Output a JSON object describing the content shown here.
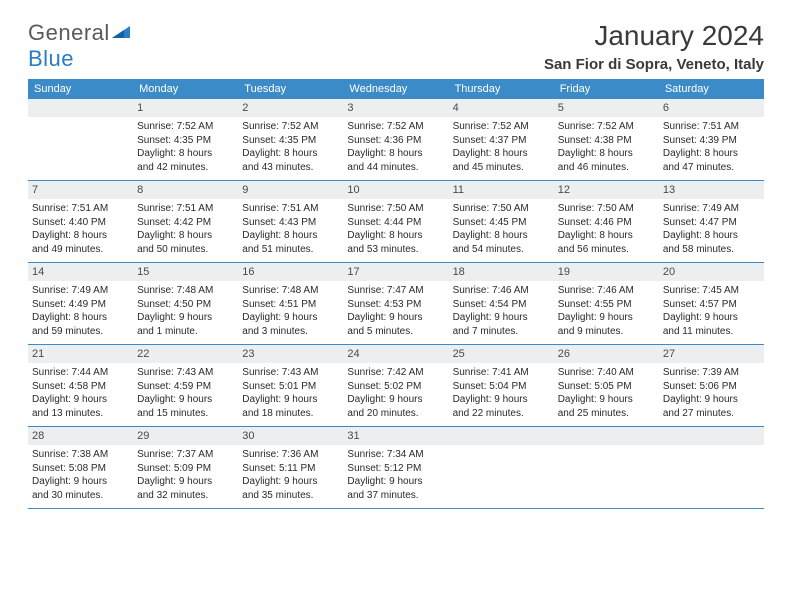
{
  "logo": {
    "text1": "General",
    "text2": "Blue"
  },
  "title": "January 2024",
  "location": "San Fior di Sopra, Veneto, Italy",
  "colors": {
    "header_bar": "#3b8bc9",
    "daynum_bg": "#eceef0",
    "text_dark": "#3a3a3a",
    "logo_gray": "#5a5a5a",
    "logo_blue": "#2b7cc4"
  },
  "weekdays": [
    "Sunday",
    "Monday",
    "Tuesday",
    "Wednesday",
    "Thursday",
    "Friday",
    "Saturday"
  ],
  "weeks": [
    [
      {
        "n": "",
        "sunrise": "",
        "sunset": "",
        "d1": "",
        "d2": ""
      },
      {
        "n": "1",
        "sunrise": "Sunrise: 7:52 AM",
        "sunset": "Sunset: 4:35 PM",
        "d1": "Daylight: 8 hours",
        "d2": "and 42 minutes."
      },
      {
        "n": "2",
        "sunrise": "Sunrise: 7:52 AM",
        "sunset": "Sunset: 4:35 PM",
        "d1": "Daylight: 8 hours",
        "d2": "and 43 minutes."
      },
      {
        "n": "3",
        "sunrise": "Sunrise: 7:52 AM",
        "sunset": "Sunset: 4:36 PM",
        "d1": "Daylight: 8 hours",
        "d2": "and 44 minutes."
      },
      {
        "n": "4",
        "sunrise": "Sunrise: 7:52 AM",
        "sunset": "Sunset: 4:37 PM",
        "d1": "Daylight: 8 hours",
        "d2": "and 45 minutes."
      },
      {
        "n": "5",
        "sunrise": "Sunrise: 7:52 AM",
        "sunset": "Sunset: 4:38 PM",
        "d1": "Daylight: 8 hours",
        "d2": "and 46 minutes."
      },
      {
        "n": "6",
        "sunrise": "Sunrise: 7:51 AM",
        "sunset": "Sunset: 4:39 PM",
        "d1": "Daylight: 8 hours",
        "d2": "and 47 minutes."
      }
    ],
    [
      {
        "n": "7",
        "sunrise": "Sunrise: 7:51 AM",
        "sunset": "Sunset: 4:40 PM",
        "d1": "Daylight: 8 hours",
        "d2": "and 49 minutes."
      },
      {
        "n": "8",
        "sunrise": "Sunrise: 7:51 AM",
        "sunset": "Sunset: 4:42 PM",
        "d1": "Daylight: 8 hours",
        "d2": "and 50 minutes."
      },
      {
        "n": "9",
        "sunrise": "Sunrise: 7:51 AM",
        "sunset": "Sunset: 4:43 PM",
        "d1": "Daylight: 8 hours",
        "d2": "and 51 minutes."
      },
      {
        "n": "10",
        "sunrise": "Sunrise: 7:50 AM",
        "sunset": "Sunset: 4:44 PM",
        "d1": "Daylight: 8 hours",
        "d2": "and 53 minutes."
      },
      {
        "n": "11",
        "sunrise": "Sunrise: 7:50 AM",
        "sunset": "Sunset: 4:45 PM",
        "d1": "Daylight: 8 hours",
        "d2": "and 54 minutes."
      },
      {
        "n": "12",
        "sunrise": "Sunrise: 7:50 AM",
        "sunset": "Sunset: 4:46 PM",
        "d1": "Daylight: 8 hours",
        "d2": "and 56 minutes."
      },
      {
        "n": "13",
        "sunrise": "Sunrise: 7:49 AM",
        "sunset": "Sunset: 4:47 PM",
        "d1": "Daylight: 8 hours",
        "d2": "and 58 minutes."
      }
    ],
    [
      {
        "n": "14",
        "sunrise": "Sunrise: 7:49 AM",
        "sunset": "Sunset: 4:49 PM",
        "d1": "Daylight: 8 hours",
        "d2": "and 59 minutes."
      },
      {
        "n": "15",
        "sunrise": "Sunrise: 7:48 AM",
        "sunset": "Sunset: 4:50 PM",
        "d1": "Daylight: 9 hours",
        "d2": "and 1 minute."
      },
      {
        "n": "16",
        "sunrise": "Sunrise: 7:48 AM",
        "sunset": "Sunset: 4:51 PM",
        "d1": "Daylight: 9 hours",
        "d2": "and 3 minutes."
      },
      {
        "n": "17",
        "sunrise": "Sunrise: 7:47 AM",
        "sunset": "Sunset: 4:53 PM",
        "d1": "Daylight: 9 hours",
        "d2": "and 5 minutes."
      },
      {
        "n": "18",
        "sunrise": "Sunrise: 7:46 AM",
        "sunset": "Sunset: 4:54 PM",
        "d1": "Daylight: 9 hours",
        "d2": "and 7 minutes."
      },
      {
        "n": "19",
        "sunrise": "Sunrise: 7:46 AM",
        "sunset": "Sunset: 4:55 PM",
        "d1": "Daylight: 9 hours",
        "d2": "and 9 minutes."
      },
      {
        "n": "20",
        "sunrise": "Sunrise: 7:45 AM",
        "sunset": "Sunset: 4:57 PM",
        "d1": "Daylight: 9 hours",
        "d2": "and 11 minutes."
      }
    ],
    [
      {
        "n": "21",
        "sunrise": "Sunrise: 7:44 AM",
        "sunset": "Sunset: 4:58 PM",
        "d1": "Daylight: 9 hours",
        "d2": "and 13 minutes."
      },
      {
        "n": "22",
        "sunrise": "Sunrise: 7:43 AM",
        "sunset": "Sunset: 4:59 PM",
        "d1": "Daylight: 9 hours",
        "d2": "and 15 minutes."
      },
      {
        "n": "23",
        "sunrise": "Sunrise: 7:43 AM",
        "sunset": "Sunset: 5:01 PM",
        "d1": "Daylight: 9 hours",
        "d2": "and 18 minutes."
      },
      {
        "n": "24",
        "sunrise": "Sunrise: 7:42 AM",
        "sunset": "Sunset: 5:02 PM",
        "d1": "Daylight: 9 hours",
        "d2": "and 20 minutes."
      },
      {
        "n": "25",
        "sunrise": "Sunrise: 7:41 AM",
        "sunset": "Sunset: 5:04 PM",
        "d1": "Daylight: 9 hours",
        "d2": "and 22 minutes."
      },
      {
        "n": "26",
        "sunrise": "Sunrise: 7:40 AM",
        "sunset": "Sunset: 5:05 PM",
        "d1": "Daylight: 9 hours",
        "d2": "and 25 minutes."
      },
      {
        "n": "27",
        "sunrise": "Sunrise: 7:39 AM",
        "sunset": "Sunset: 5:06 PM",
        "d1": "Daylight: 9 hours",
        "d2": "and 27 minutes."
      }
    ],
    [
      {
        "n": "28",
        "sunrise": "Sunrise: 7:38 AM",
        "sunset": "Sunset: 5:08 PM",
        "d1": "Daylight: 9 hours",
        "d2": "and 30 minutes."
      },
      {
        "n": "29",
        "sunrise": "Sunrise: 7:37 AM",
        "sunset": "Sunset: 5:09 PM",
        "d1": "Daylight: 9 hours",
        "d2": "and 32 minutes."
      },
      {
        "n": "30",
        "sunrise": "Sunrise: 7:36 AM",
        "sunset": "Sunset: 5:11 PM",
        "d1": "Daylight: 9 hours",
        "d2": "and 35 minutes."
      },
      {
        "n": "31",
        "sunrise": "Sunrise: 7:34 AM",
        "sunset": "Sunset: 5:12 PM",
        "d1": "Daylight: 9 hours",
        "d2": "and 37 minutes."
      },
      {
        "n": "",
        "sunrise": "",
        "sunset": "",
        "d1": "",
        "d2": ""
      },
      {
        "n": "",
        "sunrise": "",
        "sunset": "",
        "d1": "",
        "d2": ""
      },
      {
        "n": "",
        "sunrise": "",
        "sunset": "",
        "d1": "",
        "d2": ""
      }
    ]
  ]
}
